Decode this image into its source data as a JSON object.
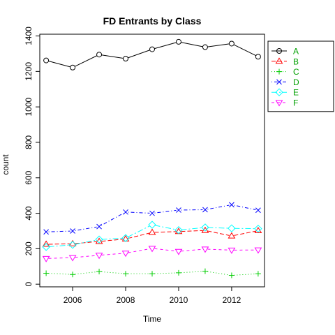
{
  "chart_data": {
    "type": "line",
    "title": "FD Entrants by Class",
    "xlabel": "Time",
    "ylabel": "count",
    "x": [
      2005,
      2006,
      2007,
      2008,
      2009,
      2010,
      2011,
      2012,
      2013
    ],
    "x_ticks": [
      2006,
      2008,
      2010,
      2012
    ],
    "y_ticks": [
      0,
      200,
      400,
      600,
      800,
      1000,
      1200,
      1400
    ],
    "xlim": [
      2004.76,
      2013.24
    ],
    "ylim": [
      -15,
      1410
    ],
    "legend_position": "top-right",
    "series": [
      {
        "name": "A",
        "color": "#000000",
        "marker": "circle",
        "dash": "",
        "values": [
          1262,
          1222,
          1295,
          1272,
          1325,
          1367,
          1337,
          1357,
          1283
        ]
      },
      {
        "name": "B",
        "color": "#ff0000",
        "marker": "triangle-up",
        "dash": "6 3",
        "values": [
          225,
          228,
          241,
          255,
          292,
          297,
          303,
          272,
          302
        ]
      },
      {
        "name": "C",
        "color": "#00cd00",
        "marker": "plus",
        "dash": "1 3",
        "values": [
          62,
          55,
          71,
          59,
          59,
          64,
          73,
          50,
          59
        ]
      },
      {
        "name": "D",
        "color": "#0000ff",
        "marker": "x",
        "dash": "1 3 5 3",
        "values": [
          295,
          300,
          325,
          407,
          400,
          418,
          420,
          448,
          417
        ]
      },
      {
        "name": "E",
        "color": "#00ffff",
        "marker": "diamond",
        "dash": "8 3 2 3",
        "values": [
          210,
          222,
          252,
          260,
          335,
          305,
          320,
          315,
          313
        ]
      },
      {
        "name": "F",
        "color": "#ff00ff",
        "marker": "triangle-down",
        "dash": "4 4",
        "values": [
          145,
          150,
          163,
          175,
          202,
          185,
          198,
          192,
          193
        ]
      }
    ]
  }
}
